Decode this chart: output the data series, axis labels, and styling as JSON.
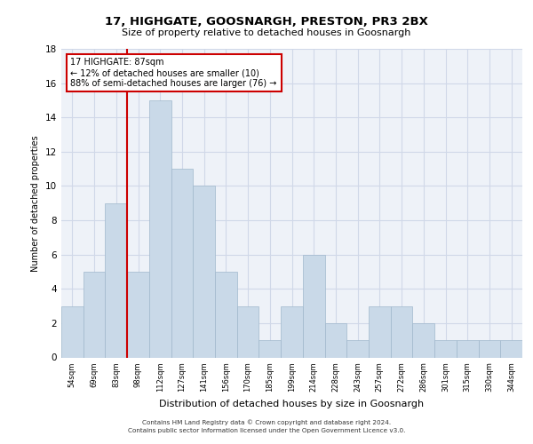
{
  "title1": "17, HIGHGATE, GOOSNARGH, PRESTON, PR3 2BX",
  "title2": "Size of property relative to detached houses in Goosnargh",
  "xlabel": "Distribution of detached houses by size in Goosnargh",
  "ylabel": "Number of detached properties",
  "categories": [
    "54sqm",
    "69sqm",
    "83sqm",
    "98sqm",
    "112sqm",
    "127sqm",
    "141sqm",
    "156sqm",
    "170sqm",
    "185sqm",
    "199sqm",
    "214sqm",
    "228sqm",
    "243sqm",
    "257sqm",
    "272sqm",
    "286sqm",
    "301sqm",
    "315sqm",
    "330sqm",
    "344sqm"
  ],
  "values": [
    3,
    5,
    9,
    5,
    15,
    11,
    10,
    5,
    3,
    1,
    3,
    6,
    2,
    1,
    3,
    3,
    2,
    1,
    1,
    1,
    1
  ],
  "bar_color": "#c9d9e8",
  "bar_edge_color": "#a0b8cc",
  "ref_line_color": "#cc0000",
  "annotation_text": "17 HIGHGATE: 87sqm\n← 12% of detached houses are smaller (10)\n88% of semi-detached houses are larger (76) →",
  "annotation_box_color": "#cc0000",
  "ylim": [
    0,
    18
  ],
  "yticks": [
    0,
    2,
    4,
    6,
    8,
    10,
    12,
    14,
    16,
    18
  ],
  "grid_color": "#d0d8e8",
  "background_color": "#eef2f8",
  "footer1": "Contains HM Land Registry data © Crown copyright and database right 2024.",
  "footer2": "Contains public sector information licensed under the Open Government Licence v3.0."
}
